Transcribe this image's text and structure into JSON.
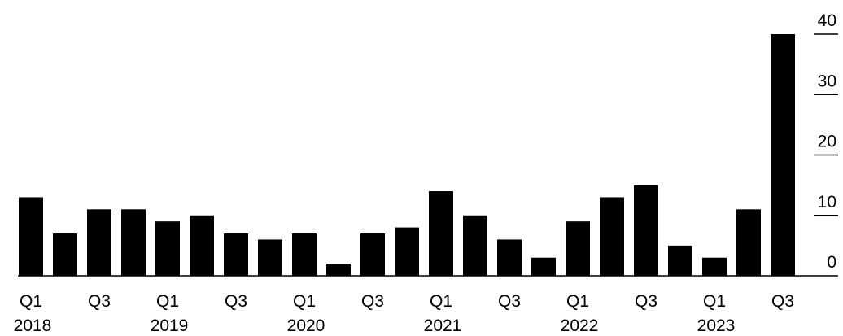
{
  "chart_data": {
    "type": "bar",
    "categories": [
      "Q1 2018",
      "Q2 2018",
      "Q3 2018",
      "Q4 2018",
      "Q1 2019",
      "Q2 2019",
      "Q3 2019",
      "Q4 2019",
      "Q1 2020",
      "Q2 2020",
      "Q3 2020",
      "Q4 2020",
      "Q1 2021",
      "Q2 2021",
      "Q3 2021",
      "Q4 2021",
      "Q1 2022",
      "Q2 2022",
      "Q3 2022",
      "Q4 2022",
      "Q1 2023",
      "Q2 2023",
      "Q3 2023"
    ],
    "values": [
      13,
      7,
      11,
      11,
      9,
      10,
      7,
      6,
      7,
      2,
      7,
      8,
      14,
      10,
      6,
      3,
      9,
      13,
      15,
      5,
      3,
      11,
      40
    ],
    "x_tick_labels": [
      {
        "index": 0,
        "quarter": "Q1",
        "year": "2018"
      },
      {
        "index": 2,
        "quarter": "Q3",
        "year": ""
      },
      {
        "index": 4,
        "quarter": "Q1",
        "year": "2019"
      },
      {
        "index": 6,
        "quarter": "Q3",
        "year": ""
      },
      {
        "index": 8,
        "quarter": "Q1",
        "year": "2020"
      },
      {
        "index": 10,
        "quarter": "Q3",
        "year": ""
      },
      {
        "index": 12,
        "quarter": "Q1",
        "year": "2021"
      },
      {
        "index": 14,
        "quarter": "Q3",
        "year": ""
      },
      {
        "index": 16,
        "quarter": "Q1",
        "year": "2022"
      },
      {
        "index": 18,
        "quarter": "Q3",
        "year": ""
      },
      {
        "index": 20,
        "quarter": "Q1",
        "year": "2023"
      },
      {
        "index": 22,
        "quarter": "Q3",
        "year": ""
      }
    ],
    "y_ticks": [
      0,
      10,
      20,
      30,
      40
    ],
    "ylim": [
      0,
      40
    ],
    "y_axis_position": "right",
    "title": "",
    "xlabel": "",
    "ylabel": "",
    "grid": false,
    "bar_color": "#000000"
  }
}
